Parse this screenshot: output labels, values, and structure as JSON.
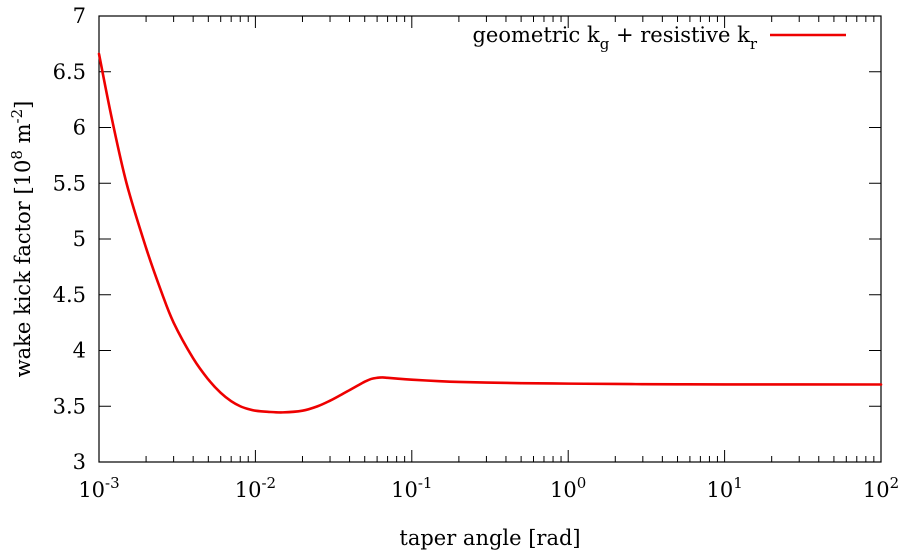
{
  "chart_data": {
    "type": "line",
    "title": "",
    "xlabel": "taper angle [rad]",
    "ylabel": {
      "prefix": "wake kick factor [10",
      "exp1": "8",
      "mid": " m",
      "exp2": "-2",
      "suffix": "]"
    },
    "x_scale": "log",
    "xlim": [
      0.001,
      100
    ],
    "ylim": [
      3,
      7
    ],
    "grid": false,
    "legend_position": "top-right",
    "x_ticks": [
      {
        "value": 0.001,
        "base": "10",
        "exp": "-3"
      },
      {
        "value": 0.01,
        "base": "10",
        "exp": "-2"
      },
      {
        "value": 0.1,
        "base": "10",
        "exp": "-1"
      },
      {
        "value": 1,
        "base": "10",
        "exp": "0"
      },
      {
        "value": 10,
        "base": "10",
        "exp": "1"
      },
      {
        "value": 100,
        "base": "10",
        "exp": "2"
      }
    ],
    "y_ticks": [
      {
        "value": 3,
        "label": "3"
      },
      {
        "value": 3.5,
        "label": "3.5"
      },
      {
        "value": 4,
        "label": "4"
      },
      {
        "value": 4.5,
        "label": "4.5"
      },
      {
        "value": 5,
        "label": "5"
      },
      {
        "value": 5.5,
        "label": "5.5"
      },
      {
        "value": 6,
        "label": "6"
      },
      {
        "value": 6.5,
        "label": "6.5"
      },
      {
        "value": 7,
        "label": "7"
      }
    ],
    "series": [
      {
        "name": {
          "part1": "geometric k",
          "sub1": "g",
          "part2": " + resistive k",
          "sub2": "r"
        },
        "color": "#ee0000",
        "x": [
          0.001,
          0.0012,
          0.0015,
          0.002,
          0.0025,
          0.003,
          0.004,
          0.005,
          0.006,
          0.007,
          0.008,
          0.009,
          0.01,
          0.012,
          0.015,
          0.02,
          0.025,
          0.03,
          0.035,
          0.04,
          0.045,
          0.05,
          0.055,
          0.06,
          0.065,
          0.07,
          0.08,
          0.1,
          0.15,
          0.2,
          0.3,
          0.5,
          1,
          2,
          3,
          5,
          10,
          100
        ],
        "y": [
          6.66,
          6.1,
          5.5,
          4.92,
          4.53,
          4.25,
          3.93,
          3.74,
          3.62,
          3.545,
          3.5,
          3.475,
          3.46,
          3.45,
          3.445,
          3.46,
          3.5,
          3.55,
          3.6,
          3.645,
          3.685,
          3.72,
          3.745,
          3.755,
          3.758,
          3.755,
          3.748,
          3.738,
          3.725,
          3.718,
          3.712,
          3.707,
          3.703,
          3.7,
          3.698,
          3.697,
          3.696,
          3.695
        ]
      }
    ]
  }
}
